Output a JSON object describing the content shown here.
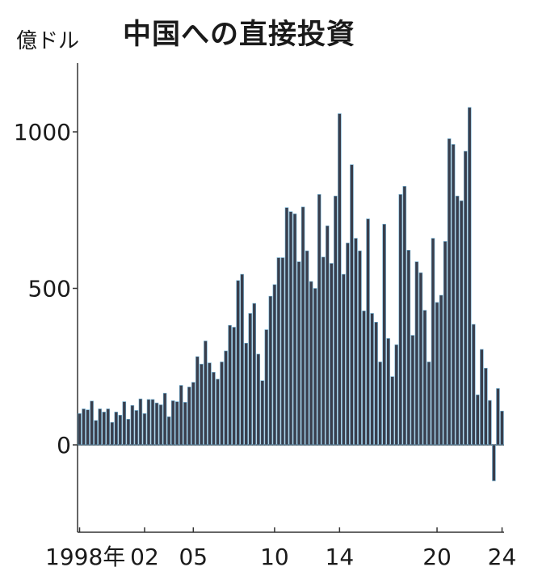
{
  "chart_data": {
    "type": "bar",
    "title": "中国への直接投資",
    "ylabel": "億ドル",
    "xlabel": "",
    "ylim": [
      -260,
      1220
    ],
    "y_ticks": [
      0,
      500,
      1000
    ],
    "y_tick_labels": [
      "0",
      "500",
      "1000"
    ],
    "x_tick_labels": [
      {
        "label": "1998年",
        "index": 0
      },
      {
        "label": "02",
        "index": 16
      },
      {
        "label": "05",
        "index": 28
      },
      {
        "label": "10",
        "index": 48
      },
      {
        "label": "14",
        "index": 64
      },
      {
        "label": "20",
        "index": 88
      },
      {
        "label": "24",
        "index": 104
      }
    ],
    "bar_color": "#3a3e4c",
    "bar_edge_color": "#6fb0d4",
    "values": [
      100,
      115,
      112,
      140,
      78,
      115,
      105,
      115,
      72,
      105,
      95,
      138,
      82,
      126,
      110,
      147,
      100,
      145,
      145,
      134,
      128,
      165,
      90,
      141,
      138,
      190,
      136,
      185,
      200,
      282,
      258,
      332,
      262,
      232,
      210,
      265,
      300,
      382,
      376,
      525,
      545,
      325,
      420,
      452,
      290,
      205,
      368,
      475,
      512,
      598,
      598,
      758,
      745,
      738,
      585,
      760,
      620,
      522,
      500,
      800,
      600,
      700,
      580,
      795,
      1058,
      545,
      645,
      895,
      660,
      620,
      428,
      722,
      420,
      392,
      265,
      705,
      340,
      218,
      320,
      800,
      826,
      622,
      350,
      585,
      550,
      430,
      265,
      660,
      455,
      478,
      650,
      978,
      960,
      795,
      780,
      938,
      1078,
      385,
      160,
      305,
      245,
      142,
      -115,
      180,
      108
    ]
  }
}
